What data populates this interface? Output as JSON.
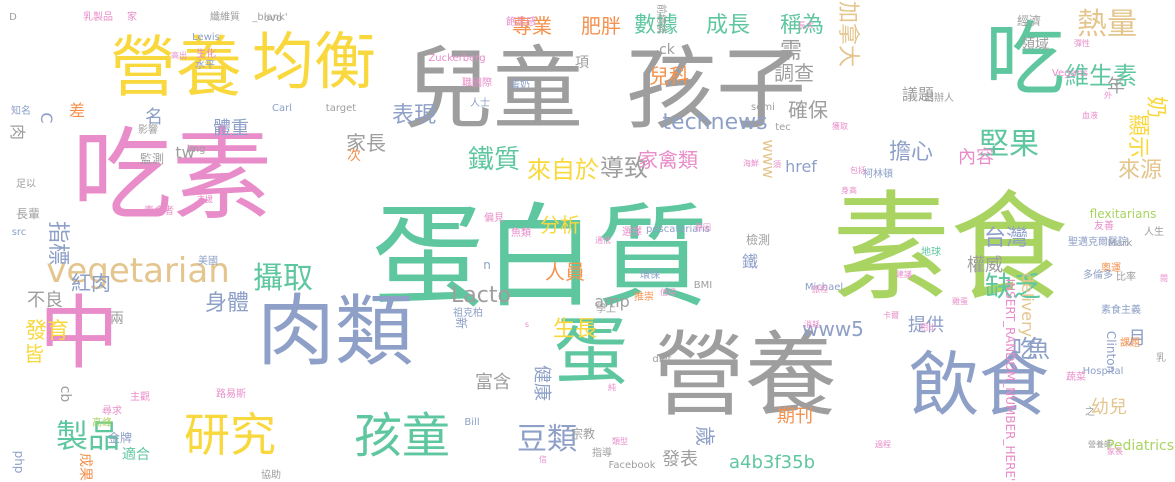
{
  "palette": {
    "green": "#5fc7a0",
    "lime": "#a9d461",
    "gray": "#9e9e9e",
    "slate": "#8ea0c8",
    "pink": "#e88dc9",
    "yellow": "#f9d83e",
    "tan": "#e4c58e",
    "orange": "#f4924e"
  },
  "words": [
    {
      "t": "素食",
      "c": "lime"
    },
    {
      "t": "蛋白質",
      "c": "green"
    },
    {
      "t": "吃素",
      "c": "pink"
    },
    {
      "t": "兒童",
      "c": "gray"
    },
    {
      "t": "孩子",
      "c": "gray"
    },
    {
      "t": "營養",
      "c": "gray"
    },
    {
      "t": "營養",
      "c": "yellow"
    },
    {
      "t": "均衡",
      "c": "yellow"
    },
    {
      "t": "吃",
      "c": "green"
    },
    {
      "t": "中",
      "c": "pink"
    },
    {
      "t": "肉類",
      "c": "slate"
    },
    {
      "t": "蛋",
      "c": "green"
    },
    {
      "t": "飲食",
      "c": "slate"
    },
    {
      "t": "孩童",
      "c": "green"
    },
    {
      "t": "研究",
      "c": "yellow"
    },
    {
      "t": "vegetarian",
      "c": "tan"
    },
    {
      "t": "攝取",
      "c": "green"
    },
    {
      "t": "堅果",
      "c": "green"
    },
    {
      "t": "熱量",
      "c": "tan"
    },
    {
      "t": "鐵質",
      "c": "green"
    },
    {
      "t": "豆類",
      "c": "slate"
    },
    {
      "t": "製品",
      "c": "green"
    },
    {
      "t": "缺乏",
      "c": "green"
    },
    {
      "t": "吃",
      "c": "slate"
    },
    {
      "t": "魚",
      "c": "slate"
    },
    {
      "t": "專業",
      "c": "orange"
    },
    {
      "t": "肥胖",
      "c": "orange"
    },
    {
      "t": "數據",
      "c": "green"
    },
    {
      "t": "成長",
      "c": "green"
    },
    {
      "t": "稱為",
      "c": "green"
    },
    {
      "t": "加拿大",
      "c": "tan"
    },
    {
      "t": "維生素",
      "c": "green"
    },
    {
      "t": "兒科",
      "c": "orange"
    },
    {
      "t": "調查",
      "c": "gray"
    },
    {
      "t": "需",
      "c": "gray"
    },
    {
      "t": "年",
      "c": "gray"
    },
    {
      "t": "奶",
      "c": "yellow"
    },
    {
      "t": "顯示",
      "c": "yellow"
    },
    {
      "t": "擔心",
      "c": "slate"
    },
    {
      "t": "內容",
      "c": "pink"
    },
    {
      "t": "來源",
      "c": "tan"
    },
    {
      "t": "表現",
      "c": "slate"
    },
    {
      "t": "家長",
      "c": "gray"
    },
    {
      "t": "來自於",
      "c": "yellow"
    },
    {
      "t": "導致",
      "c": "gray"
    },
    {
      "t": "家禽類",
      "c": "pink"
    },
    {
      "t": "確保",
      "c": "gray"
    },
    {
      "t": "體重",
      "c": "slate"
    },
    {
      "t": "名",
      "c": "slate"
    },
    {
      "t": "指標",
      "c": "slate"
    },
    {
      "t": "紅肉",
      "c": "slate"
    },
    {
      "t": "分析",
      "c": "yellow"
    },
    {
      "t": "人員",
      "c": "orange"
    },
    {
      "t": "台灣",
      "c": "slate"
    },
    {
      "t": "權威",
      "c": "gray"
    },
    {
      "t": "身體",
      "c": "slate"
    },
    {
      "t": "不良",
      "c": "gray"
    },
    {
      "t": "發育",
      "c": "yellow"
    },
    {
      "t": "皆",
      "c": "yellow"
    },
    {
      "t": "Lacto",
      "c": "gray"
    },
    {
      "t": "生長",
      "c": "yellow"
    },
    {
      "t": "www5",
      "c": "slate"
    },
    {
      "t": "提供",
      "c": "slate"
    },
    {
      "t": "富含",
      "c": "gray"
    },
    {
      "t": "健康",
      "c": "slate"
    },
    {
      "t": "歲",
      "c": "slate"
    },
    {
      "t": "月",
      "c": "slate"
    },
    {
      "t": "幼兒",
      "c": "tan"
    },
    {
      "t": "amp",
      "c": "gray"
    },
    {
      "t": "期刊",
      "c": "orange"
    },
    {
      "t": "發表",
      "c": "gray"
    },
    {
      "t": "a4b3f35b",
      "c": "green"
    },
    {
      "t": "Pediatrics",
      "c": "lime"
    },
    {
      "t": "議題",
      "c": "gray"
    },
    {
      "t": "technews",
      "c": "slate"
    },
    {
      "t": "鐵",
      "c": "slate"
    },
    {
      "t": "肉",
      "c": "gray"
    },
    {
      "t": "C",
      "c": "slate"
    },
    {
      "t": "差",
      "c": "orange"
    },
    {
      "t": "tw",
      "c": "gray"
    },
    {
      "t": "次",
      "c": "orange"
    },
    {
      "t": "www",
      "c": "tan"
    },
    {
      "t": "href",
      "c": "slate"
    },
    {
      "t": "delivery",
      "c": "tan"
    },
    {
      "t": "cb",
      "c": "gray"
    },
    {
      "t": "兩",
      "c": "gray"
    },
    {
      "t": "檢測",
      "c": "gray"
    },
    {
      "t": "n",
      "c": "slate"
    },
    {
      "t": "新",
      "c": "slate"
    },
    {
      "t": "項",
      "c": "gray"
    },
    {
      "t": "ck",
      "c": "gray"
    },
    {
      "t": "領域",
      "c": "gray"
    },
    {
      "t": "經濟",
      "c": "gray"
    },
    {
      "t": "Clinton",
      "c": "slate"
    },
    {
      "t": "宗教",
      "c": "gray"
    },
    {
      "t": "適合",
      "c": "green"
    },
    {
      "t": "成果",
      "c": "orange"
    },
    {
      "t": "php",
      "c": "slate"
    },
    {
      "t": "INSERT_RANDOM_NUMBER_HERE'",
      "c": "pink"
    },
    {
      "t": "Facebook",
      "c": "gray"
    },
    {
      "t": "Bill",
      "c": "slate"
    },
    {
      "t": "前總統",
      "c": "gray"
    },
    {
      "t": "_blank'",
      "c": "gray"
    },
    {
      "t": "target",
      "c": "gray"
    },
    {
      "t": "Carl",
      "c": "slate"
    },
    {
      "t": "Lewis",
      "c": "slate"
    },
    {
      "t": "Zuckerberg",
      "c": "pink"
    },
    {
      "t": "創辦人",
      "c": "gray"
    },
    {
      "t": "Mark",
      "c": "gray"
    },
    {
      "t": "Michael",
      "c": "slate"
    },
    {
      "t": "flexitarians",
      "c": "lime"
    },
    {
      "t": "pescatarians",
      "c": "slate"
    },
    {
      "t": "柯林頓",
      "c": "slate"
    },
    {
      "t": "美國",
      "c": "slate"
    },
    {
      "t": "地球",
      "c": "green"
    },
    {
      "t": "奧運",
      "c": "orange"
    },
    {
      "t": "友善",
      "c": "pink"
    },
    {
      "t": "多倫多",
      "c": "slate"
    },
    {
      "t": "聖邁克爾醫院",
      "c": "slate"
    },
    {
      "t": "人生",
      "c": "gray"
    },
    {
      "t": "素食主義",
      "c": "slate"
    },
    {
      "t": "課題",
      "c": "orange"
    },
    {
      "t": "Hospital",
      "c": "slate"
    },
    {
      "t": "路易斯",
      "c": "pink"
    },
    {
      "t": "推崇",
      "c": "orange"
    },
    {
      "t": "環保",
      "c": "slate"
    },
    {
      "t": "祖克柏",
      "c": "slate"
    },
    {
      "t": "主觀",
      "c": "pink"
    },
    {
      "t": "尋求",
      "c": "pink"
    },
    {
      "t": "高峰",
      "c": "lime"
    },
    {
      "t": "金牌",
      "c": "slate"
    },
    {
      "t": "生化",
      "c": "pink"
    },
    {
      "t": "水平",
      "c": "slate"
    },
    {
      "t": "知名",
      "c": "slate"
    },
    {
      "t": "影響",
      "c": "gray"
    },
    {
      "t": "監測",
      "c": "gray"
    },
    {
      "t": "img",
      "c": "gray"
    },
    {
      "t": "足以",
      "c": "gray"
    },
    {
      "t": "長輩",
      "c": "gray"
    },
    {
      "t": "src",
      "c": "slate"
    },
    {
      "t": "Vegans",
      "c": "pink"
    },
    {
      "t": "semi",
      "c": "gray"
    },
    {
      "t": "tec",
      "c": "gray"
    },
    {
      "t": "diet",
      "c": "gray"
    },
    {
      "t": "BMI",
      "c": "gray"
    },
    {
      "t": "學上",
      "c": "gray"
    },
    {
      "t": "ovo",
      "c": "gray"
    },
    {
      "t": "D",
      "c": "gray"
    },
    {
      "t": "家",
      "c": "pink"
    },
    {
      "t": "乳製品",
      "c": "pink"
    },
    {
      "t": "纖維質",
      "c": "gray"
    },
    {
      "t": "人士",
      "c": "slate"
    },
    {
      "t": "飽足感",
      "c": "pink"
    },
    {
      "t": "職國際",
      "c": "pink"
    },
    {
      "t": "蛋奶",
      "c": "slate"
    },
    {
      "t": "選擇",
      "c": "pink"
    },
    {
      "t": "蔬菜",
      "c": "pink"
    },
    {
      "t": "家長",
      "c": "pink"
    },
    {
      "t": "協助",
      "c": "gray"
    },
    {
      "t": "比率",
      "c": "gray"
    },
    {
      "t": "指導",
      "c": "gray"
    },
    {
      "t": "營養師",
      "c": "gray"
    },
    {
      "t": "乳",
      "c": "gray"
    },
    {
      "t": "之",
      "c": "gray"
    },
    {
      "t": "過程",
      "c": "pink"
    },
    {
      "t": "建議",
      "c": "pink"
    },
    {
      "t": "卡爾",
      "c": "pink"
    },
    {
      "t": "消耗",
      "c": "pink"
    },
    {
      "t": "相比",
      "c": "pink"
    },
    {
      "t": "旅程",
      "c": "pink"
    },
    {
      "t": "魚類",
      "c": "pink"
    },
    {
      "t": "偏見",
      "c": "pink"
    },
    {
      "t": "素食者",
      "c": "pink"
    },
    {
      "t": "身高",
      "c": "pink"
    },
    {
      "t": "血液",
      "c": "pink"
    },
    {
      "t": "獲取",
      "c": "pink"
    },
    {
      "t": "須",
      "c": "pink"
    },
    {
      "t": "海鮮",
      "c": "pink"
    },
    {
      "t": "值得",
      "c": "pink"
    },
    {
      "t": "原因",
      "c": "pink"
    },
    {
      "t": "包括",
      "c": "pink"
    },
    {
      "t": "彈性",
      "c": "pink"
    },
    {
      "t": "長大",
      "c": "pink"
    },
    {
      "t": "高出",
      "c": "pink"
    },
    {
      "t": "支援",
      "c": "pink"
    },
    {
      "t": "閱",
      "c": "pink"
    },
    {
      "t": "通低",
      "c": "pink"
    },
    {
      "t": "純",
      "c": "pink"
    },
    {
      "t": "信",
      "c": "pink"
    },
    {
      "t": "類型",
      "c": "pink"
    },
    {
      "t": "雞蛋",
      "c": "pink"
    },
    {
      "t": "外",
      "c": "pink"
    },
    {
      "t": "s",
      "c": "pink"
    },
    {
      "t": "St",
      "c": "pink"
    },
    {
      "t": "a",
      "c": "pink"
    }
  ]
}
